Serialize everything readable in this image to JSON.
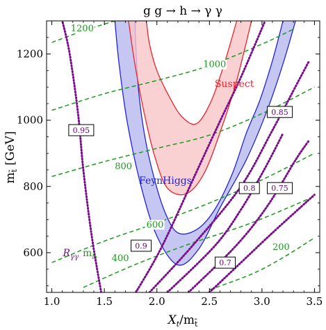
{
  "chart_data": {
    "type": "contour",
    "title": "g g → h → γ γ",
    "xlabel": "X_t/m_t̃",
    "ylabel": "m_t̃ [GeV]",
    "xlim": [
      0.95,
      3.55
    ],
    "ylim": [
      480,
      1300
    ],
    "xticks": [
      1.0,
      1.5,
      2.0,
      2.5,
      3.0,
      3.5
    ],
    "xtick_labels": [
      "1.0",
      "1.5",
      "2.0",
      "2.5",
      "3.0",
      "3.5"
    ],
    "yticks": [
      600,
      800,
      1000,
      1200
    ],
    "ytick_labels": [
      "600",
      "800",
      "1000",
      "1200"
    ],
    "colors": {
      "suspect": "#e8242b",
      "suspect_fill": "#f9c6c8",
      "feynhiggs": "#1f22d8",
      "feynhiggs_fill": "#b8b8f0",
      "ratio": "#7a0e8a",
      "mlight": "#1a9a1a"
    },
    "bands": [
      {
        "name": "Suspect",
        "label": "Suspect",
        "label_pos": [
          2.55,
          1100
        ],
        "outer": [
          [
            1.73,
            1300
          ],
          [
            1.79,
            1170
          ],
          [
            1.88,
            1020
          ],
          [
            1.98,
            890
          ],
          [
            2.1,
            795
          ],
          [
            2.28,
            778
          ],
          [
            2.45,
            840
          ],
          [
            2.62,
            980
          ],
          [
            2.76,
            1120
          ],
          [
            2.9,
            1300
          ]
        ],
        "inner": [
          [
            2.76,
            1300
          ],
          [
            2.65,
            1180
          ],
          [
            2.52,
            1060
          ],
          [
            2.38,
            990
          ],
          [
            2.24,
            1010
          ],
          [
            2.12,
            1070
          ],
          [
            2.0,
            1150
          ],
          [
            1.93,
            1230
          ],
          [
            1.9,
            1300
          ]
        ]
      },
      {
        "name": "FeynHiggs",
        "label": "FeynHiggs",
        "label_pos": [
          1.83,
          808
        ],
        "outer": [
          [
            1.6,
            1300
          ],
          [
            1.64,
            1170
          ],
          [
            1.72,
            990
          ],
          [
            1.85,
            800
          ],
          [
            2.0,
            650
          ],
          [
            2.2,
            563
          ],
          [
            2.4,
            612
          ],
          [
            2.6,
            735
          ],
          [
            2.85,
            880
          ],
          [
            3.05,
            1030
          ],
          [
            3.2,
            1170
          ],
          [
            3.32,
            1300
          ]
        ],
        "inner": [
          [
            3.2,
            1300
          ],
          [
            3.1,
            1180
          ],
          [
            2.98,
            1060
          ],
          [
            2.85,
            960
          ],
          [
            2.72,
            840
          ],
          [
            2.55,
            730
          ],
          [
            2.38,
            670
          ],
          [
            2.2,
            660
          ],
          [
            2.08,
            720
          ],
          [
            1.97,
            830
          ],
          [
            1.88,
            960
          ],
          [
            1.82,
            1110
          ],
          [
            1.79,
            1300
          ]
        ]
      }
    ],
    "mlight_contours": [
      {
        "label": "200",
        "label_pos": [
          3.1,
          608
        ],
        "points": [
          [
            2.5,
            488
          ],
          [
            2.9,
            535
          ],
          [
            3.2,
            585
          ],
          [
            3.5,
            645
          ]
        ]
      },
      {
        "label": "400",
        "label_pos": [
          1.57,
          575
        ],
        "points": [
          [
            1.3,
            495
          ],
          [
            1.8,
            565
          ],
          [
            2.3,
            625
          ],
          [
            2.9,
            690
          ],
          [
            3.5,
            770
          ]
        ]
      },
      {
        "label": "600",
        "label_pos": [
          1.9,
          676
        ],
        "points": [
          [
            1.0,
            570
          ],
          [
            1.5,
            635
          ],
          [
            2.0,
            690
          ],
          [
            2.5,
            750
          ],
          [
            3.0,
            820
          ],
          [
            3.5,
            900
          ]
        ]
      },
      {
        "label": "800",
        "label_pos": [
          1.6,
          852
        ],
        "points": [
          [
            1.0,
            830
          ],
          [
            1.5,
            875
          ],
          [
            2.0,
            915
          ],
          [
            2.5,
            955
          ],
          [
            3.0,
            1020
          ],
          [
            3.5,
            1100
          ]
        ]
      },
      {
        "label": "1000",
        "label_pos": [
          2.44,
          1160
        ],
        "points": [
          [
            1.0,
            1030
          ],
          [
            1.5,
            1080
          ],
          [
            2.0,
            1120
          ],
          [
            2.5,
            1165
          ],
          [
            3.0,
            1230
          ],
          [
            3.3,
            1275
          ]
        ]
      },
      {
        "label": "1200",
        "label_pos": [
          1.18,
          1268
        ],
        "points": [
          [
            1.0,
            1235
          ],
          [
            1.3,
            1270
          ],
          [
            1.6,
            1300
          ]
        ]
      }
    ],
    "ratio_contours": [
      {
        "label": "0.95",
        "label_pos": [
          1.28,
          970
        ],
        "points": [
          [
            1.47,
            480
          ],
          [
            1.38,
            650
          ],
          [
            1.3,
            850
          ],
          [
            1.25,
            1020
          ],
          [
            1.17,
            1200
          ],
          [
            1.1,
            1300
          ]
        ]
      },
      {
        "label": "0.9",
        "label_pos": [
          1.85,
          621
        ],
        "points": [
          [
            1.8,
            480
          ],
          [
            2.05,
            620
          ],
          [
            2.4,
            860
          ],
          [
            2.62,
            1010
          ],
          [
            2.8,
            1130
          ],
          [
            3.03,
            1300
          ]
        ]
      },
      {
        "label": "0.85",
        "label_pos": [
          3.17,
          1025
        ],
        "points": [
          [
            1.93,
            480
          ],
          [
            2.35,
            625
          ],
          [
            2.8,
            800
          ],
          [
            3.1,
            970
          ],
          [
            3.35,
            1120
          ],
          [
            3.45,
            1180
          ]
        ]
      },
      {
        "label": "0.8",
        "label_pos": [
          2.88,
          795
        ],
        "points": [
          [
            2.1,
            480
          ],
          [
            2.55,
            620
          ],
          [
            2.8,
            730
          ],
          [
            3.02,
            850
          ],
          [
            3.2,
            960
          ]
        ]
      },
      {
        "label": "0.75",
        "label_pos": [
          3.17,
          795
        ],
        "points": [
          [
            2.3,
            480
          ],
          [
            2.75,
            620
          ],
          [
            3.05,
            740
          ],
          [
            3.32,
            880
          ],
          [
            3.45,
            940
          ]
        ]
      },
      {
        "label": "0.7",
        "label_pos": [
          2.65,
          570
        ],
        "points": [
          [
            2.5,
            480
          ],
          [
            2.8,
            570
          ],
          [
            3.1,
            660
          ],
          [
            3.5,
            775
          ]
        ]
      }
    ],
    "legend_text": {
      "ratio_symbol": "R",
      "ratio_sub": "γγ",
      "mlight_symbol": "m",
      "mlight_sub": "t̃₁",
      "label_pos": [
        1.0,
        625
      ]
    }
  }
}
